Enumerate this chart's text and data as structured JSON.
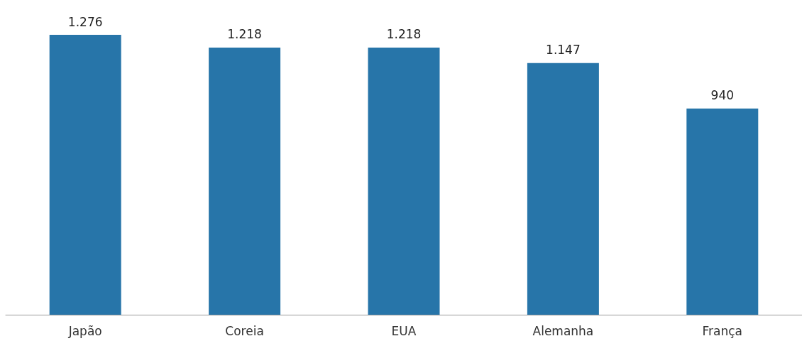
{
  "chart_data": {
    "type": "bar",
    "categories": [
      "Japão",
      "Coreia",
      "EUA",
      "Alemanha",
      "França"
    ],
    "values": [
      1276,
      1218,
      1218,
      1147,
      940
    ],
    "value_labels": [
      "1.276",
      "1.218",
      "1.218",
      "1.147",
      "940"
    ],
    "color": "#2775a9"
  }
}
